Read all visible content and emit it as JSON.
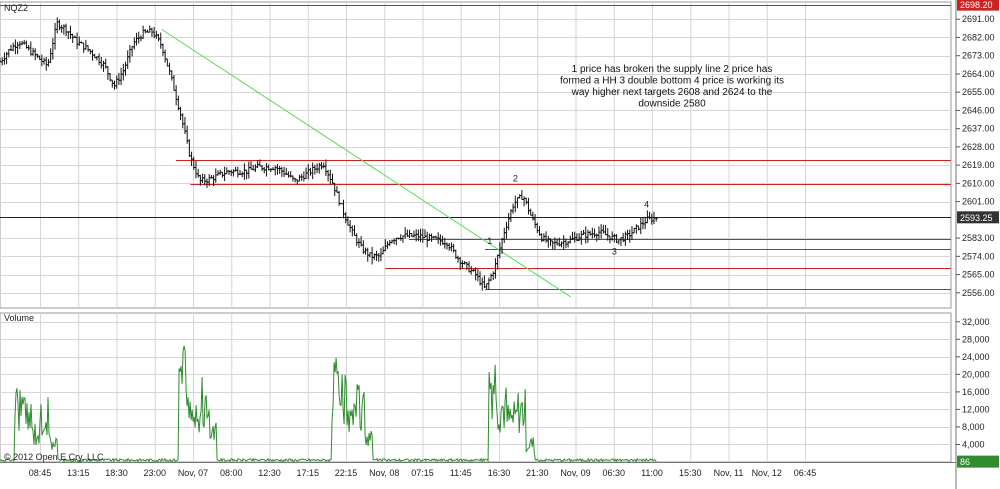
{
  "chart_data": {
    "type": "ohlc",
    "symbol": "NQZ2",
    "copyright": "© 2012 Open E Cry, LLC",
    "colors": {
      "bars": "#111111",
      "trendline": "#55dd55",
      "levels": "#cc2222",
      "last_price": "#222222",
      "volume": "#2e8b2e",
      "grid": "#d6d6d6",
      "price_badge_bg": "#cc2222",
      "volume_badge_bg": "#2e8b2e"
    },
    "price_axis": {
      "ticks": [
        "2691.00",
        "2682.00",
        "2673.00",
        "2664.00",
        "2655.00",
        "2646.00",
        "2637.00",
        "2628.00",
        "2619.00",
        "2610.00",
        "2601.00",
        "2583.00",
        "2574.00",
        "2565.00",
        "2556.00"
      ],
      "ylim": [
        2548.5,
        2699.5
      ],
      "badges": [
        {
          "label": "2698.20",
          "value": 2698.2,
          "kind": "level"
        },
        {
          "label": "2593.25",
          "value": 2593.25,
          "kind": "last"
        }
      ]
    },
    "time_axis": {
      "labels": [
        "08:45",
        "13:15",
        "18:30",
        "23:00",
        "Nov, 07",
        "08:00",
        "12:30",
        "17:15",
        "22:15",
        "Nov, 08",
        "07:15",
        "11:45",
        "16:30",
        "21:30",
        "Nov, 09",
        "06:30",
        "11:00",
        "15:30",
        "Nov, 11",
        "Nov, 12",
        "06:45"
      ]
    },
    "price_anchors": [
      [
        0,
        2670
      ],
      [
        1,
        2676
      ],
      [
        2,
        2680
      ],
      [
        3,
        2676
      ],
      [
        4,
        2672
      ],
      [
        5,
        2668
      ],
      [
        6,
        2689
      ],
      [
        7,
        2686
      ],
      [
        8,
        2680
      ],
      [
        9,
        2677
      ],
      [
        10,
        2673
      ],
      [
        11,
        2668
      ],
      [
        12,
        2658
      ],
      [
        13,
        2666
      ],
      [
        14,
        2679
      ],
      [
        15,
        2684
      ],
      [
        16,
        2685
      ],
      [
        17,
        2678
      ],
      [
        18,
        2662
      ],
      [
        19,
        2644
      ],
      [
        20,
        2623
      ],
      [
        21,
        2611
      ],
      [
        22,
        2612
      ],
      [
        23,
        2614
      ],
      [
        24,
        2616
      ],
      [
        25,
        2616
      ],
      [
        26,
        2616
      ],
      [
        27,
        2618
      ],
      [
        28,
        2618
      ],
      [
        29,
        2618
      ],
      [
        30,
        2615
      ],
      [
        31,
        2611
      ],
      [
        32,
        2614
      ],
      [
        33,
        2617
      ],
      [
        34,
        2620
      ],
      [
        35,
        2610
      ],
      [
        36,
        2597
      ],
      [
        37,
        2586
      ],
      [
        38,
        2578
      ],
      [
        39,
        2574
      ],
      [
        40,
        2574
      ],
      [
        41,
        2582
      ],
      [
        42,
        2584
      ],
      [
        43,
        2584
      ],
      [
        44,
        2584
      ],
      [
        45,
        2583
      ],
      [
        46,
        2582
      ],
      [
        47,
        2581
      ],
      [
        48,
        2574
      ],
      [
        49,
        2569
      ],
      [
        50,
        2565
      ],
      [
        51,
        2558
      ],
      [
        52,
        2568
      ],
      [
        53,
        2586
      ],
      [
        54,
        2600
      ],
      [
        55,
        2604
      ],
      [
        56,
        2592
      ],
      [
        57,
        2583
      ],
      [
        58,
        2580
      ],
      [
        59,
        2581
      ],
      [
        60,
        2582
      ],
      [
        61,
        2584
      ],
      [
        62,
        2585
      ],
      [
        63,
        2586
      ],
      [
        64,
        2584
      ],
      [
        65,
        2582
      ],
      [
        66,
        2584
      ],
      [
        67,
        2588
      ],
      [
        68,
        2592
      ],
      [
        69,
        2593
      ]
    ],
    "trendline": {
      "from": [
        17,
        2686
      ],
      "to": [
        60,
        2554
      ]
    },
    "levels": [
      {
        "value": 2698.2,
        "from": 0,
        "to": 100
      },
      {
        "value": 2621.5,
        "from": 18.5,
        "to": 100
      },
      {
        "value": 2609.5,
        "from": 20,
        "to": 100
      },
      {
        "value": 2582.5,
        "from": 43,
        "to": 100
      },
      {
        "value": 2577.5,
        "from": 51,
        "to": 100
      },
      {
        "value": 2568,
        "from": 40.5,
        "to": 100
      },
      {
        "value": 2558,
        "from": 51,
        "to": 100
      }
    ],
    "last_price": 2593.25,
    "annotation_lines": [
      "1 price has broken the supply line 2 price has",
      "formed a HH 3 double bottom 4 price is working its",
      "way higher next targets 2608 and 2624 to the",
      "downside 2580"
    ],
    "markers": [
      {
        "label": "1",
        "x": 51.5,
        "y": 2580
      },
      {
        "label": "2",
        "x": 54.2,
        "y": 2611
      },
      {
        "label": "3",
        "x": 64.6,
        "y": 2575
      },
      {
        "label": "4",
        "x": 68.0,
        "y": 2598
      }
    ],
    "volume_panel": {
      "label": "Volume",
      "ticks": [
        "32,000",
        "28,000",
        "24,000",
        "20,000",
        "16,000",
        "12,000",
        "8,000",
        "4,000"
      ],
      "ylim": [
        0,
        34000
      ],
      "badge": "86",
      "spikes": [
        {
          "center": 3.8,
          "width": 4.5,
          "peaks": [
            19000,
            15000,
            10000,
            16000,
            7000
          ]
        },
        {
          "center": 20.8,
          "width": 4.0,
          "peaks": [
            31000,
            15000,
            16000,
            20000,
            9000
          ]
        },
        {
          "center": 37.0,
          "width": 4.3,
          "peaks": [
            24000,
            20000,
            14000,
            18000,
            9000
          ]
        },
        {
          "center": 53.8,
          "width": 4.8,
          "peaks": [
            27000,
            18000,
            14000,
            17000,
            6000
          ]
        }
      ]
    }
  }
}
